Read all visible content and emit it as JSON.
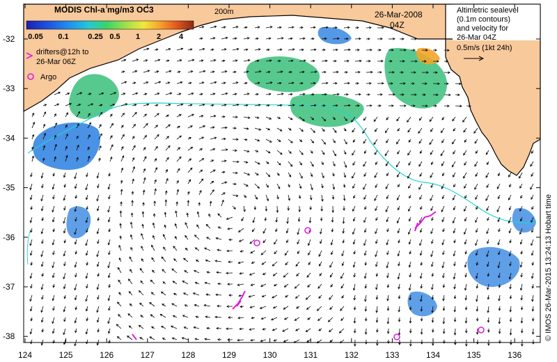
{
  "title": "MODIS Chl-a mg/m3 OC3",
  "colorbar": {
    "ticks": [
      "0.05",
      "0.1",
      "0.25",
      "0.5",
      "1",
      "2",
      "4"
    ],
    "colors": [
      "#1a1fb0",
      "#1f4fe0",
      "#1f8ef0",
      "#23c8d8",
      "#3ad46a",
      "#a4e04a",
      "#f2e93a",
      "#f7a22a",
      "#e2561e",
      "#8b2a14"
    ]
  },
  "isobath_label": "200m",
  "date": "26-Mar-2008",
  "time": "04Z",
  "info_box": [
    "Altimetric sealevel",
    "(0.1m contours)",
    "and velocity for",
    "26-Mar 04Z",
    "0.5m/s (1kt 24h)"
  ],
  "legend": {
    "drifters": [
      "drifters@12h to",
      "26-Mar 06Z"
    ],
    "argo": "Argo"
  },
  "credit": "© IMOS 26-Mar-2015 13:24:13 Hobart time",
  "lat_ticks": [
    "-32",
    "-33",
    "-34",
    "-35",
    "-36",
    "-37",
    "-38"
  ],
  "lon_ticks": [
    "124",
    "125",
    "126",
    "127",
    "128",
    "129",
    "130",
    "131",
    "132",
    "133",
    "134",
    "135",
    "136"
  ],
  "colors": {
    "land": "#f8c99b",
    "coast_line": "#000000",
    "isobath": "#22d4d4",
    "arrows": "#000000",
    "drifter": "#e01ce0",
    "argo": "#e01ce0",
    "chl_low": "#2a7fe0",
    "chl_mid": "#3bc07a",
    "chl_high": "#f2a42a"
  }
}
